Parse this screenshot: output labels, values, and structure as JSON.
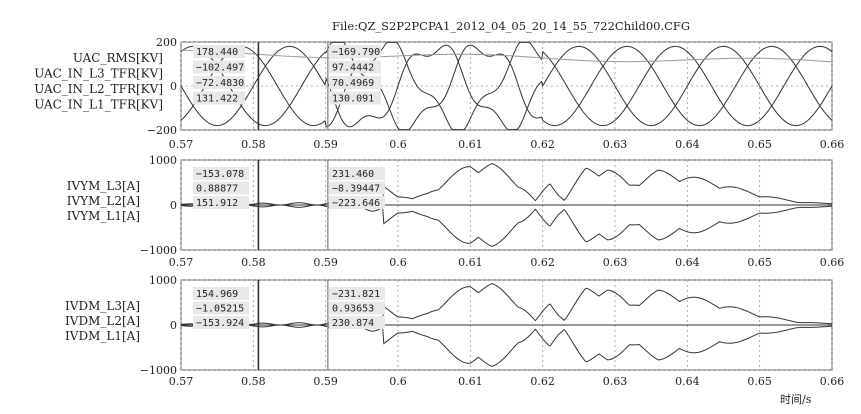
{
  "file_label": "File:QZ_S2P2PCPA1_2012_04_05_20_14_55_722Child00.CFG",
  "xaxis_label": "时间/s",
  "colors": {
    "trace": "#333333",
    "grid": "#9a9a9a",
    "frame": "#555555",
    "cursor1": "#333333",
    "cursor2": "#8a8a8a",
    "readout_bg": "#e8e8e8"
  },
  "chart_data": [
    {
      "type": "line",
      "panel": "voltage",
      "x_range": [
        0.57,
        0.66
      ],
      "ylim": [
        -200,
        200
      ],
      "ytick_labels": [
        "200",
        "0",
        "−200"
      ],
      "xtick_labels": [
        "0.57",
        "0.58",
        "0.59",
        "0.6",
        "0.61",
        "0.62",
        "0.63",
        "0.64",
        "0.65",
        "0.66"
      ],
      "grid": true,
      "series_labels": [
        "UAC_RMS[KV]",
        "UAC_IN_L3_TFR[KV]",
        "UAC_IN_L2_TFR[KV]",
        "UAC_IN_L1_TFR[KV]"
      ],
      "cursors": [
        0.5807,
        0.5903
      ],
      "readouts": [
        [
          "178.440",
          "−102.497",
          "−72.4830",
          "131.422"
        ],
        [
          "−169.790",
          "97.4442",
          "70.4969",
          "130.091"
        ]
      ]
    },
    {
      "type": "line",
      "panel": "ivym",
      "x_range": [
        0.57,
        0.66
      ],
      "ylim": [
        -1000,
        1000
      ],
      "ytick_labels": [
        "1000",
        "0",
        "−1000"
      ],
      "xtick_labels": [
        "0.57",
        "0.58",
        "0.59",
        "0.6",
        "0.61",
        "0.62",
        "0.63",
        "0.64",
        "0.65",
        "0.66"
      ],
      "grid": true,
      "series_labels": [
        "IVYM_L3[A]",
        "IVYM_L2[A]",
        "IVYM_L1[A]"
      ],
      "cursors": [
        0.5807,
        0.5903
      ],
      "readouts": [
        [
          "−153.078",
          "0.88877",
          "151.912"
        ],
        [
          "231.460",
          "−8.39447",
          "−223.646"
        ]
      ]
    },
    {
      "type": "line",
      "panel": "ivdm",
      "x_range": [
        0.57,
        0.66
      ],
      "ylim": [
        -1000,
        1000
      ],
      "ytick_labels": [
        "1000",
        "0",
        "−1000"
      ],
      "xtick_labels": [
        "0.57",
        "0.58",
        "0.59",
        "0.6",
        "0.61",
        "0.62",
        "0.63",
        "0.64",
        "0.65",
        "0.66"
      ],
      "grid": true,
      "series_labels": [
        "IVDM_L3[A]",
        "IVDM_L2[A]",
        "IVDM_L1[A]"
      ],
      "cursors": [
        0.5807,
        0.5903
      ],
      "readouts": [
        [
          "154.969",
          "−1.05215",
          "−153.924"
        ],
        [
          "−231.821",
          "0.93653",
          "230.874"
        ]
      ]
    }
  ]
}
